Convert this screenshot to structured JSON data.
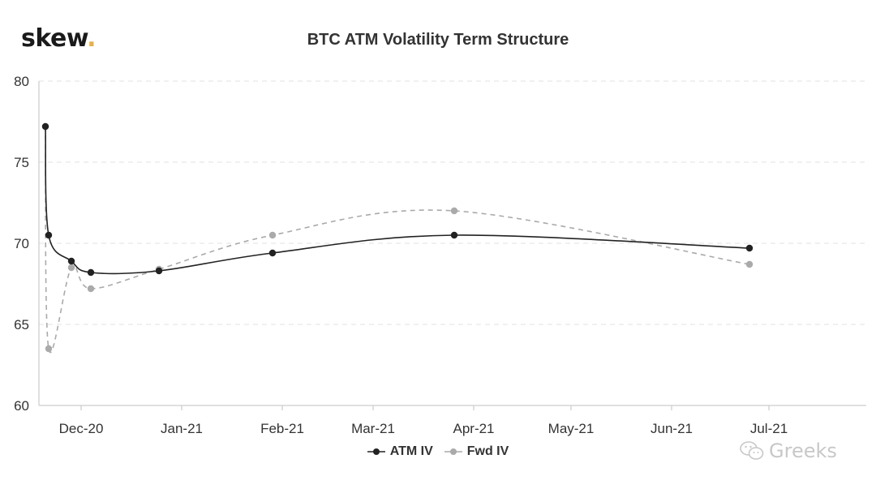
{
  "brand": {
    "name": "skew",
    "dot": "."
  },
  "watermark": {
    "text": "Greeks",
    "icon": "wechat-icon"
  },
  "chart_data": {
    "type": "line",
    "title": "BTC ATM Volatility Term Structure",
    "xlabel": "",
    "ylabel": "",
    "xlim": [
      "2020-11-18",
      "2021-07-31"
    ],
    "ylim": [
      60,
      80
    ],
    "yticks": [
      60,
      65,
      70,
      75,
      80
    ],
    "xticks": [
      {
        "date": "2020-12-01",
        "label": "Dec-20"
      },
      {
        "date": "2021-01-01",
        "label": "Jan-21"
      },
      {
        "date": "2021-02-01",
        "label": "Feb-21"
      },
      {
        "date": "2021-03-01",
        "label": "Mar-21"
      },
      {
        "date": "2021-04-01",
        "label": "Apr-21"
      },
      {
        "date": "2021-05-01",
        "label": "May-21"
      },
      {
        "date": "2021-06-01",
        "label": "Jun-21"
      },
      {
        "date": "2021-07-01",
        "label": "Jul-21"
      }
    ],
    "grid": "horizontal-dashed",
    "legend": "bottom-center",
    "series": [
      {
        "name": "ATM IV",
        "color": "#222222",
        "style": "solid",
        "points": [
          {
            "x": "2020-11-20",
            "y": 77.2
          },
          {
            "x": "2020-11-21",
            "y": 70.5
          },
          {
            "x": "2020-11-28",
            "y": 68.9
          },
          {
            "x": "2020-12-04",
            "y": 68.2
          },
          {
            "x": "2020-12-25",
            "y": 68.3
          },
          {
            "x": "2021-01-29",
            "y": 69.4
          },
          {
            "x": "2021-03-26",
            "y": 70.5
          },
          {
            "x": "2021-06-25",
            "y": 69.7
          }
        ]
      },
      {
        "name": "Fwd IV",
        "color": "#aaaaaa",
        "style": "dashed",
        "points": [
          {
            "x": "2020-11-20",
            "y": 77.2
          },
          {
            "x": "2020-11-21",
            "y": 63.5
          },
          {
            "x": "2020-11-28",
            "y": 68.5
          },
          {
            "x": "2020-12-04",
            "y": 67.2
          },
          {
            "x": "2020-12-25",
            "y": 68.4
          },
          {
            "x": "2021-01-29",
            "y": 70.5
          },
          {
            "x": "2021-03-26",
            "y": 72.0
          },
          {
            "x": "2021-06-25",
            "y": 68.7
          }
        ]
      }
    ]
  }
}
